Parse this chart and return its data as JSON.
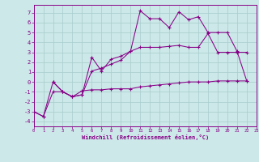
{
  "xlabel": "Windchill (Refroidissement éolien,°C)",
  "background_color": "#cce8e8",
  "grid_color": "#a8cccc",
  "line_color": "#880088",
  "xlim": [
    0,
    23
  ],
  "ylim": [
    -4.5,
    7.8
  ],
  "xticks": [
    0,
    1,
    2,
    3,
    4,
    5,
    6,
    7,
    8,
    9,
    10,
    11,
    12,
    13,
    14,
    15,
    16,
    17,
    18,
    19,
    20,
    21,
    22,
    23
  ],
  "yticks": [
    -4,
    -3,
    -2,
    -1,
    0,
    1,
    2,
    3,
    4,
    5,
    6,
    7
  ],
  "curve_jagged_x": [
    0,
    1,
    2,
    3,
    4,
    5,
    6,
    7,
    8,
    9,
    10,
    11,
    12,
    13,
    14,
    15,
    16,
    17,
    18,
    19,
    20,
    21,
    22
  ],
  "curve_jagged_y": [
    -3,
    -3.5,
    0.0,
    -1.0,
    -1.5,
    -1.3,
    2.5,
    1.1,
    2.3,
    2.6,
    3.1,
    7.2,
    6.4,
    6.4,
    5.5,
    7.1,
    6.3,
    6.6,
    5.0,
    5.0,
    5.0,
    3.1,
    0.1
  ],
  "curve_lower_x": [
    0,
    1,
    2,
    3,
    4,
    5,
    6,
    7,
    8,
    9,
    10,
    11,
    12,
    13,
    14,
    15,
    16,
    17,
    18,
    19,
    20,
    21,
    22
  ],
  "curve_lower_y": [
    -3,
    -3.5,
    -1.0,
    -1.0,
    -1.5,
    -0.9,
    -0.8,
    -0.8,
    -0.7,
    -0.7,
    -0.7,
    -0.5,
    -0.4,
    -0.3,
    -0.2,
    -0.1,
    0.0,
    0.0,
    0.0,
    0.1,
    0.1,
    0.1,
    0.1
  ],
  "curve_mid_x": [
    2,
    3,
    4,
    5,
    6,
    7,
    8,
    9,
    10,
    11,
    12,
    13,
    14,
    15,
    16,
    17,
    18,
    19,
    20,
    21,
    22
  ],
  "curve_mid_y": [
    0.0,
    -1.0,
    -1.5,
    -1.3,
    1.1,
    1.4,
    1.8,
    2.2,
    3.1,
    3.5,
    3.5,
    3.5,
    3.6,
    3.7,
    3.5,
    3.5,
    4.9,
    3.0,
    3.0,
    3.0,
    3.0
  ]
}
